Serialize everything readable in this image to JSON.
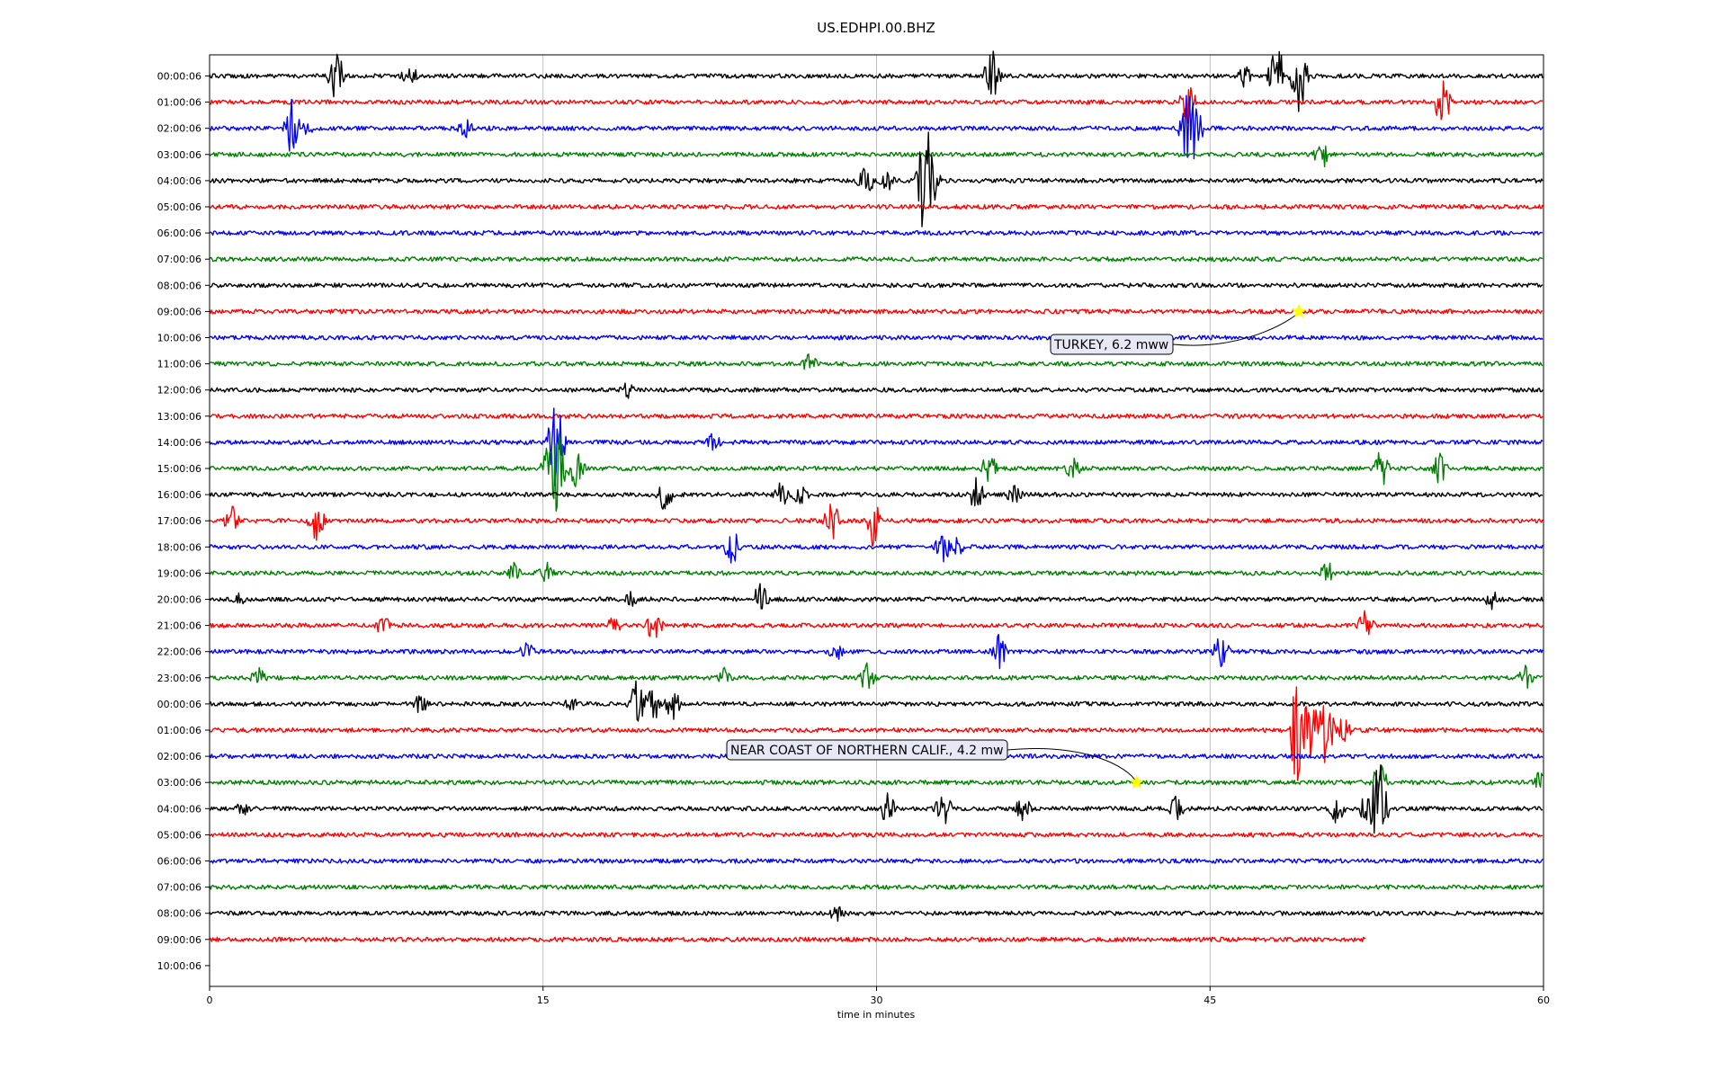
{
  "chart_data": {
    "type": "line",
    "title": "US.EDHPI.00.BHZ",
    "xlabel": "time in minutes",
    "xlim": [
      0,
      60
    ],
    "x_ticks": [
      0,
      15,
      30,
      45,
      60
    ],
    "grid": "vertical",
    "trace_colors": [
      "#000000",
      "#ff0000",
      "#0000ff",
      "#008000"
    ],
    "row_labels": [
      "00:00:06",
      "01:00:06",
      "02:00:06",
      "03:00:06",
      "04:00:06",
      "05:00:06",
      "06:00:06",
      "07:00:06",
      "08:00:06",
      "09:00:06",
      "10:00:06",
      "11:00:06",
      "12:00:06",
      "13:00:06",
      "14:00:06",
      "15:00:06",
      "16:00:06",
      "17:00:06",
      "18:00:06",
      "19:00:06",
      "20:00:06",
      "21:00:06",
      "22:00:06",
      "23:00:06",
      "00:00:06",
      "01:00:06",
      "02:00:06",
      "03:00:06",
      "04:00:06",
      "05:00:06",
      "06:00:06",
      "07:00:06",
      "08:00:06",
      "09:00:06",
      "10:00:06"
    ],
    "traces": [
      {
        "row": 0,
        "end_minute": 60,
        "spikes": [
          [
            5.7,
            1.2
          ],
          [
            9.0,
            0.6
          ],
          [
            35.2,
            1.3
          ],
          [
            46.5,
            0.6
          ],
          [
            48.0,
            1.5
          ],
          [
            49.0,
            1.8
          ]
        ]
      },
      {
        "row": 1,
        "end_minute": 60,
        "spikes": [
          [
            44.0,
            1.0
          ],
          [
            55.5,
            1.4
          ]
        ]
      },
      {
        "row": 2,
        "end_minute": 60,
        "spikes": [
          [
            3.7,
            1.4
          ],
          [
            4.3,
            0.6
          ],
          [
            11.5,
            0.5
          ],
          [
            44.0,
            1.8
          ],
          [
            44.3,
            1.6
          ]
        ]
      },
      {
        "row": 3,
        "end_minute": 60,
        "spikes": [
          [
            50.0,
            0.8
          ]
        ]
      },
      {
        "row": 4,
        "end_minute": 60,
        "spikes": [
          [
            29.5,
            0.9
          ],
          [
            30.5,
            0.6
          ],
          [
            32.2,
            3.2
          ],
          [
            32.5,
            1.2
          ]
        ]
      },
      {
        "row": 5,
        "end_minute": 60,
        "spikes": []
      },
      {
        "row": 6,
        "end_minute": 60,
        "spikes": []
      },
      {
        "row": 7,
        "end_minute": 60,
        "spikes": []
      },
      {
        "row": 8,
        "end_minute": 60,
        "spikes": []
      },
      {
        "row": 9,
        "end_minute": 60,
        "spikes": []
      },
      {
        "row": 10,
        "end_minute": 60,
        "spikes": []
      },
      {
        "row": 11,
        "end_minute": 60,
        "spikes": [
          [
            27.0,
            0.5
          ]
        ]
      },
      {
        "row": 12,
        "end_minute": 60,
        "spikes": [
          [
            18.8,
            0.4
          ]
        ]
      },
      {
        "row": 13,
        "end_minute": 60,
        "spikes": []
      },
      {
        "row": 14,
        "end_minute": 60,
        "spikes": [
          [
            15.6,
            2.3
          ],
          [
            22.7,
            0.5
          ]
        ]
      },
      {
        "row": 15,
        "end_minute": 60,
        "spikes": [
          [
            15.3,
            1.3
          ],
          [
            15.6,
            2.5
          ],
          [
            16.5,
            0.9
          ],
          [
            35.1,
            0.9
          ],
          [
            38.8,
            0.6
          ],
          [
            52.7,
            0.9
          ],
          [
            55.3,
            0.8
          ]
        ]
      },
      {
        "row": 16,
        "end_minute": 60,
        "spikes": [
          [
            20.5,
            0.8
          ],
          [
            25.7,
            0.7
          ],
          [
            26.6,
            0.6
          ],
          [
            34.5,
            0.8
          ],
          [
            36.2,
            0.5
          ]
        ]
      },
      {
        "row": 17,
        "end_minute": 60,
        "spikes": [
          [
            1.0,
            0.7
          ],
          [
            4.8,
            1.0
          ],
          [
            28.0,
            0.9
          ],
          [
            29.8,
            1.3
          ]
        ]
      },
      {
        "row": 18,
        "end_minute": 60,
        "spikes": [
          [
            23.5,
            1.0
          ],
          [
            33.0,
            0.8
          ],
          [
            33.6,
            0.6
          ]
        ]
      },
      {
        "row": 19,
        "end_minute": 60,
        "spikes": [
          [
            13.7,
            0.5
          ],
          [
            15.1,
            0.6
          ],
          [
            50.3,
            0.6
          ]
        ]
      },
      {
        "row": 20,
        "end_minute": 60,
        "spikes": [
          [
            1.3,
            0.4
          ],
          [
            19.0,
            0.4
          ],
          [
            24.8,
            0.8
          ],
          [
            57.7,
            0.5
          ]
        ]
      },
      {
        "row": 21,
        "end_minute": 60,
        "spikes": [
          [
            7.8,
            0.5
          ],
          [
            18.2,
            0.5
          ],
          [
            20.0,
            0.8
          ],
          [
            52.0,
            0.8
          ]
        ]
      },
      {
        "row": 22,
        "end_minute": 60,
        "spikes": [
          [
            14.3,
            0.5
          ],
          [
            28.2,
            0.5
          ],
          [
            35.5,
            0.8
          ],
          [
            45.5,
            0.8
          ]
        ]
      },
      {
        "row": 23,
        "end_minute": 60,
        "spikes": [
          [
            2.2,
            0.5
          ],
          [
            23.2,
            0.5
          ],
          [
            29.6,
            0.8
          ],
          [
            59.2,
            0.6
          ]
        ]
      },
      {
        "row": 24,
        "end_minute": 60,
        "spikes": [
          [
            9.5,
            0.5
          ],
          [
            16.3,
            0.4
          ],
          [
            19.2,
            1.2
          ],
          [
            19.9,
            1.0
          ],
          [
            20.8,
            0.8
          ]
        ]
      },
      {
        "row": 25,
        "end_minute": 60,
        "spikes": [
          [
            48.9,
            2.5
          ],
          [
            49.5,
            1.8
          ],
          [
            50.2,
            2.0
          ],
          [
            51.0,
            0.6
          ]
        ]
      },
      {
        "row": 26,
        "end_minute": 60,
        "spikes": []
      },
      {
        "row": 27,
        "end_minute": 60,
        "spikes": [
          [
            52.6,
            1.0
          ],
          [
            59.8,
            0.5
          ]
        ]
      },
      {
        "row": 28,
        "end_minute": 60,
        "spikes": [
          [
            1.5,
            0.4
          ],
          [
            30.5,
            0.8
          ],
          [
            33.0,
            0.9
          ],
          [
            36.6,
            0.7
          ],
          [
            43.5,
            0.6
          ],
          [
            50.7,
            0.7
          ],
          [
            52.0,
            0.6
          ],
          [
            52.6,
            2.5
          ]
        ]
      },
      {
        "row": 29,
        "end_minute": 60,
        "spikes": []
      },
      {
        "row": 30,
        "end_minute": 60,
        "spikes": []
      },
      {
        "row": 31,
        "end_minute": 60,
        "spikes": []
      },
      {
        "row": 32,
        "end_minute": 60,
        "spikes": [
          [
            28.2,
            0.4
          ]
        ]
      },
      {
        "row": 33,
        "end_minute": 52,
        "spikes": []
      }
    ],
    "events": [
      {
        "label": "TURKEY, 6.2 mww",
        "row": 9,
        "minute": 49.0,
        "marker": "star",
        "marker_color": "#ffff00"
      },
      {
        "label": "NEAR COAST OF NORTHERN CALIF., 4.2 mw",
        "row": 27,
        "minute": 41.7,
        "marker": "star",
        "marker_color": "#ffff00"
      }
    ]
  }
}
